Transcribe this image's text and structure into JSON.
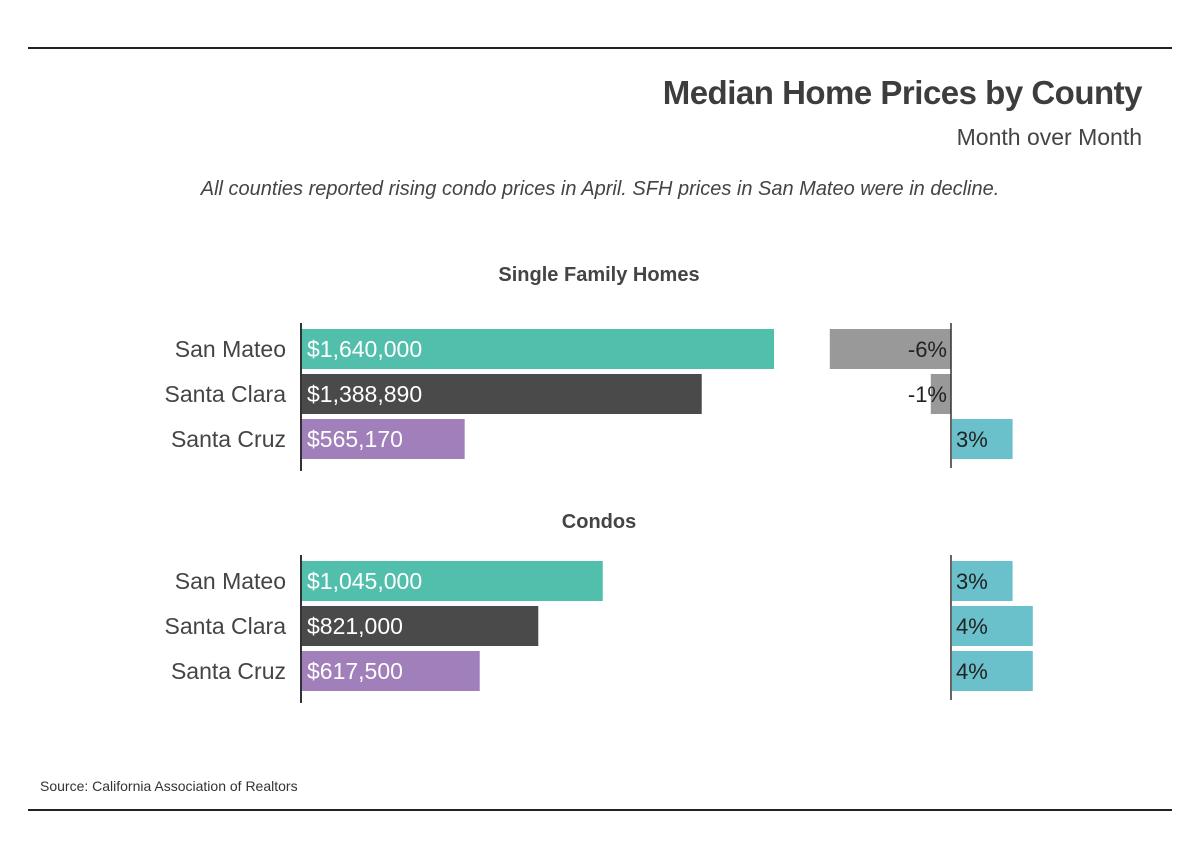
{
  "header": {
    "title": "Median Home Prices by County",
    "subtitle": "Month over Month",
    "annotation": "All counties reported rising condo prices in April. SFH prices in San Mateo were in decline."
  },
  "footer": {
    "source": "Source:  California Association of Realtors"
  },
  "colors": {
    "county": [
      "#52bfac",
      "#4a4a4a",
      "#a07fba"
    ],
    "change_positive": "#6ac1cc",
    "change_negative": "#999999",
    "axis": "#333333"
  },
  "chart_data": [
    {
      "type": "bar",
      "title": "Single Family Homes",
      "categories": [
        "San Mateo",
        "Santa Clara",
        "Santa Cruz"
      ],
      "values": [
        1640000,
        1388890,
        565170
      ],
      "value_labels": [
        "$1,640,000",
        "$1,388,890",
        "$565,170"
      ],
      "change_pct": [
        -6,
        -1,
        3
      ],
      "change_labels": [
        "-6%",
        "-1%",
        "3%"
      ]
    },
    {
      "type": "bar",
      "title": "Condos",
      "categories": [
        "San Mateo",
        "Santa Clara",
        "Santa Cruz"
      ],
      "values": [
        1045000,
        821000,
        617500
      ],
      "value_labels": [
        "$1,045,000",
        "$821,000",
        "$617,500"
      ],
      "change_pct": [
        3,
        4,
        4
      ],
      "change_labels": [
        "3%",
        "4%",
        "4%"
      ]
    }
  ]
}
